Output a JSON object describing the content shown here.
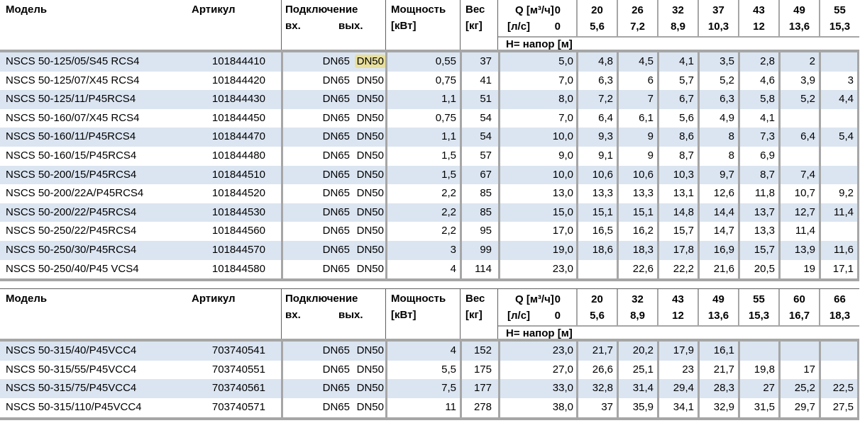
{
  "labels": {
    "model": "Модель",
    "article": "Артикул",
    "connection": "Подключение",
    "inlet": "вх.",
    "outlet": "вых.",
    "power_line1": "Мощность",
    "power_line2": "[кВт]",
    "weight_line1": "Вес",
    "weight_line2": "[кг]",
    "q_line1": "Q [м³/ч]",
    "q_line2": "[л/с]",
    "head_band": "Н= напор [м]"
  },
  "colors": {
    "row_stripe": "#dbe5f1",
    "thick_border": "#a6a6a6",
    "thin_border": "#5f5f5f",
    "search_highlight": "#e8df9c",
    "text": "#000000"
  },
  "tables": [
    {
      "q_m3h": [
        "0",
        "20",
        "26",
        "32",
        "37",
        "43",
        "49",
        "55"
      ],
      "q_ls": [
        "0",
        "5,6",
        "7,2",
        "8,9",
        "10,3",
        "12",
        "13,6",
        "15,3"
      ],
      "rows": [
        {
          "model": "NSCS 50-125/05/S45 RCS4",
          "article": "101844410",
          "inlet": "DN65",
          "outlet": "DN50",
          "outlet_highlighted": true,
          "power": "0,55",
          "weight": "37",
          "heads": [
            "5,0",
            "4,8",
            "4,5",
            "4,1",
            "3,5",
            "2,8",
            "2",
            ""
          ]
        },
        {
          "model": "NSCS 50-125/07/X45 RCS4",
          "article": "101844420",
          "inlet": "DN65",
          "outlet": "DN50",
          "outlet_highlighted": false,
          "power": "0,75",
          "weight": "41",
          "heads": [
            "7,0",
            "6,3",
            "6",
            "5,7",
            "5,2",
            "4,6",
            "3,9",
            "3"
          ]
        },
        {
          "model": "NSCS 50-125/11/P45RCS4",
          "article": "101844430",
          "inlet": "DN65",
          "outlet": "DN50",
          "outlet_highlighted": false,
          "power": "1,1",
          "weight": "51",
          "heads": [
            "8,0",
            "7,2",
            "7",
            "6,7",
            "6,3",
            "5,8",
            "5,2",
            "4,4"
          ]
        },
        {
          "model": "NSCS 50-160/07/X45 RCS4",
          "article": "101844450",
          "inlet": "DN65",
          "outlet": "DN50",
          "outlet_highlighted": false,
          "power": "0,75",
          "weight": "54",
          "heads": [
            "7,0",
            "6,4",
            "6,1",
            "5,6",
            "4,9",
            "4,1",
            "",
            ""
          ]
        },
        {
          "model": "NSCS 50-160/11/P45RCS4",
          "article": "101844470",
          "inlet": "DN65",
          "outlet": "DN50",
          "outlet_highlighted": false,
          "power": "1,1",
          "weight": "54",
          "heads": [
            "10,0",
            "9,3",
            "9",
            "8,6",
            "8",
            "7,3",
            "6,4",
            "5,4"
          ]
        },
        {
          "model": "NSCS 50-160/15/P45RCS4",
          "article": "101844480",
          "inlet": "DN65",
          "outlet": "DN50",
          "outlet_highlighted": false,
          "power": "1,5",
          "weight": "57",
          "heads": [
            "9,0",
            "9,1",
            "9",
            "8,7",
            "8",
            "6,9",
            "",
            ""
          ]
        },
        {
          "model": "NSCS 50-200/15/P45RCS4",
          "article": "101844510",
          "inlet": "DN65",
          "outlet": "DN50",
          "outlet_highlighted": false,
          "power": "1,5",
          "weight": "67",
          "heads": [
            "10,0",
            "10,6",
            "10,6",
            "10,3",
            "9,7",
            "8,7",
            "7,4",
            ""
          ]
        },
        {
          "model": "NSCS 50-200/22A/P45RCS4",
          "article": "101844520",
          "inlet": "DN65",
          "outlet": "DN50",
          "outlet_highlighted": false,
          "power": "2,2",
          "weight": "85",
          "heads": [
            "13,0",
            "13,3",
            "13,3",
            "13,1",
            "12,6",
            "11,8",
            "10,7",
            "9,2"
          ]
        },
        {
          "model": "NSCS 50-200/22/P45RCS4",
          "article": "101844530",
          "inlet": "DN65",
          "outlet": "DN50",
          "outlet_highlighted": false,
          "power": "2,2",
          "weight": "85",
          "heads": [
            "15,0",
            "15,1",
            "15,1",
            "14,8",
            "14,4",
            "13,7",
            "12,7",
            "11,4"
          ]
        },
        {
          "model": "NSCS 50-250/22/P45RCS4",
          "article": "101844560",
          "inlet": "DN65",
          "outlet": "DN50",
          "outlet_highlighted": false,
          "power": "2,2",
          "weight": "95",
          "heads": [
            "17,0",
            "16,5",
            "16,2",
            "15,7",
            "14,7",
            "13,3",
            "11,4",
            ""
          ]
        },
        {
          "model": "NSCS 50-250/30/P45RCS4",
          "article": "101844570",
          "inlet": "DN65",
          "outlet": "DN50",
          "outlet_highlighted": false,
          "power": "3",
          "weight": "99",
          "heads": [
            "19,0",
            "18,6",
            "18,3",
            "17,8",
            "16,9",
            "15,7",
            "13,9",
            "11,6"
          ]
        },
        {
          "model": "NSCS 50-250/40/P45 VCS4",
          "article": "101844580",
          "inlet": "DN65",
          "outlet": "DN50",
          "outlet_highlighted": false,
          "power": "4",
          "weight": "114",
          "heads": [
            "23,0",
            "",
            "22,6",
            "22,2",
            "21,6",
            "20,5",
            "19",
            "17,1"
          ]
        }
      ]
    },
    {
      "q_m3h": [
        "0",
        "20",
        "32",
        "43",
        "49",
        "55",
        "60",
        "66"
      ],
      "q_ls": [
        "0",
        "5,6",
        "8,9",
        "12",
        "13,6",
        "15,3",
        "16,7",
        "18,3"
      ],
      "rows": [
        {
          "model": "NSCS 50-315/40/P45VCC4",
          "article": "703740541",
          "inlet": "DN65",
          "outlet": "DN50",
          "outlet_highlighted": false,
          "power": "4",
          "weight": "152",
          "heads": [
            "23,0",
            "21,7",
            "20,2",
            "17,9",
            "16,1",
            "",
            "",
            ""
          ]
        },
        {
          "model": "NSCS 50-315/55/P45VCC4",
          "article": "703740551",
          "inlet": "DN65",
          "outlet": "DN50",
          "outlet_highlighted": false,
          "power": "5,5",
          "weight": "175",
          "heads": [
            "27,0",
            "26,6",
            "25,1",
            "23",
            "21,7",
            "19,8",
            "17",
            ""
          ]
        },
        {
          "model": "NSCS 50-315/75/P45VCC4",
          "article": "703740561",
          "inlet": "DN65",
          "outlet": "DN50",
          "outlet_highlighted": false,
          "power": "7,5",
          "weight": "177",
          "heads": [
            "33,0",
            "32,8",
            "31,4",
            "29,4",
            "28,3",
            "27",
            "25,2",
            "22,5"
          ]
        },
        {
          "model": "NSCS 50-315/110/P45VCC4",
          "article": "703740571",
          "inlet": "DN65",
          "outlet": "DN50",
          "outlet_highlighted": false,
          "power": "11",
          "weight": "278",
          "heads": [
            "38,0",
            "37",
            "35,9",
            "34,1",
            "32,9",
            "31,5",
            "29,7",
            "27,5"
          ]
        }
      ]
    }
  ]
}
